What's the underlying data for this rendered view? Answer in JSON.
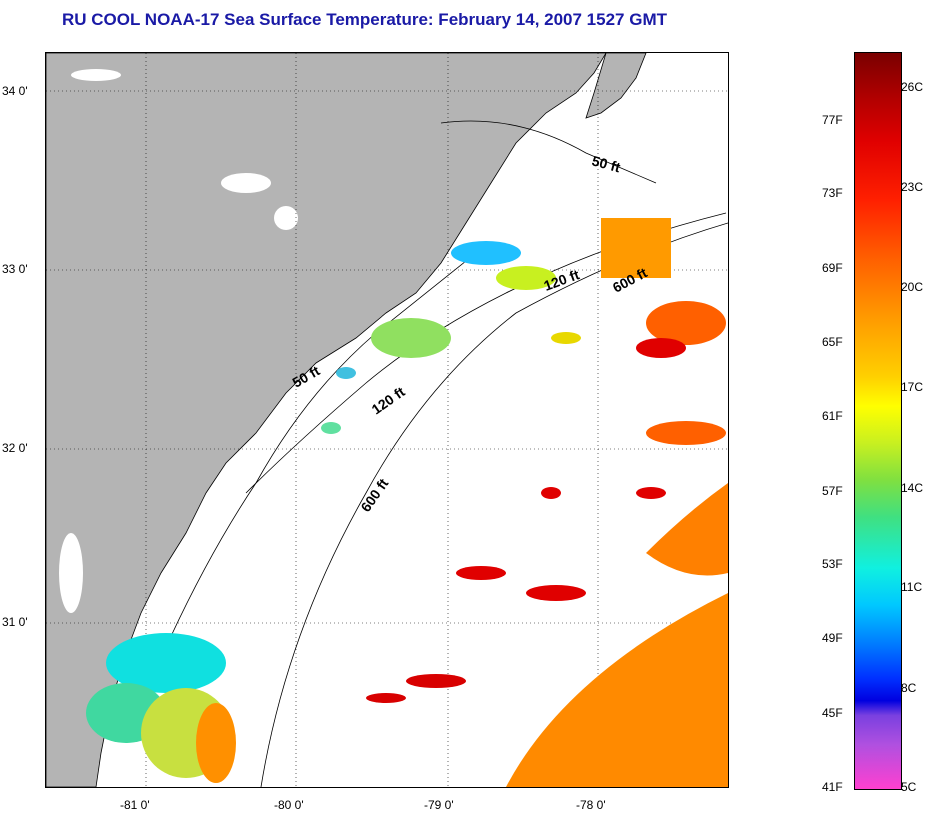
{
  "title": "RU COOL  NOAA-17  Sea Surface Temperature:  February 14, 2007 1527 GMT",
  "lat_labels": [
    "34 0'",
    "33 0'",
    "32 0'",
    "31 0'"
  ],
  "lon_labels": [
    "-81 0'",
    "-80 0'",
    "-79 0'",
    "-78 0'"
  ],
  "depth_labels": [
    "50 ft",
    "120 ft",
    "600 ft",
    "50 ft",
    "120 ft",
    "600 ft"
  ],
  "colorbar": {
    "fahrenheit": [
      "77F",
      "73F",
      "69F",
      "65F",
      "61F",
      "57F",
      "53F",
      "49F",
      "45F",
      "41F"
    ],
    "celsius": [
      "26C",
      "23C",
      "20C",
      "17C",
      "14C",
      "11C",
      "8C",
      "5C"
    ]
  },
  "colors": {
    "land": "#b4b4b4",
    "title": "#1a1aa6",
    "warm": "#ff6a00",
    "hot": "#e00000",
    "mid": "#ffd000",
    "cool": "#40e0e0",
    "cold": "#10b0ff"
  }
}
